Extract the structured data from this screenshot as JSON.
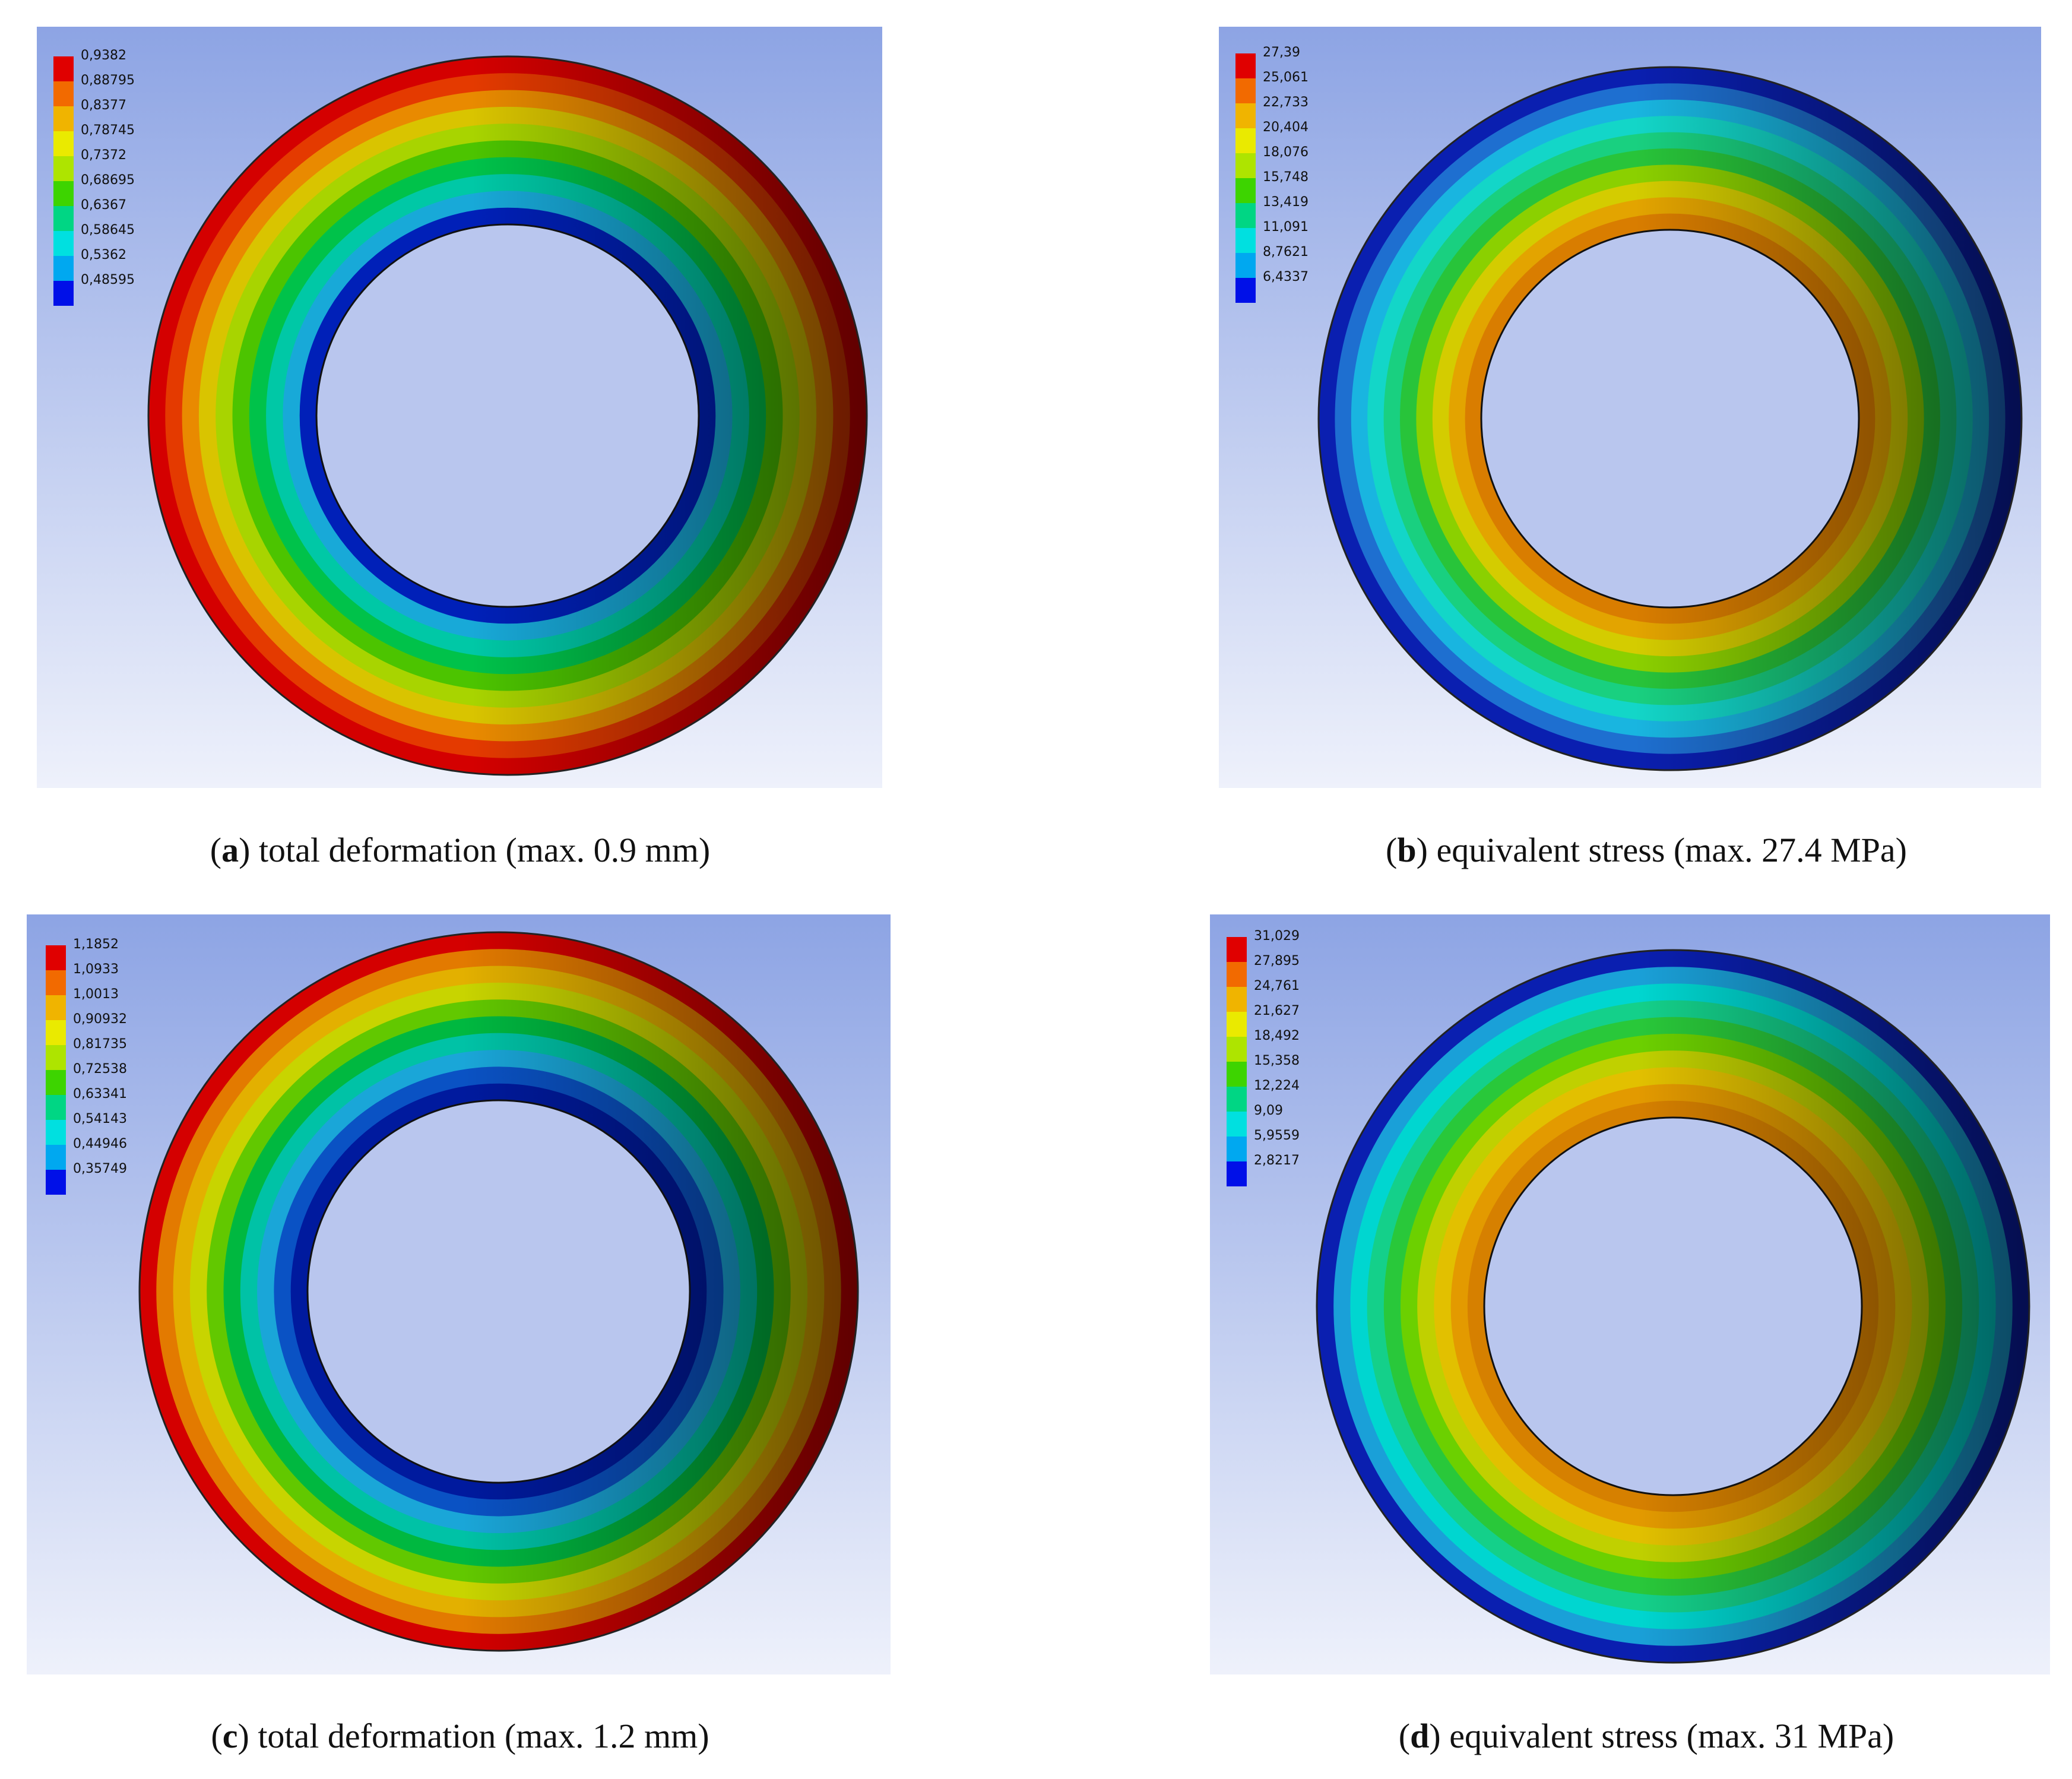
{
  "panels": [
    {
      "id": "a",
      "letter": "a",
      "caption_text": "total deformation (max. 0.9 mm)",
      "legend_values": [
        "0,9382",
        "0,88795",
        "0,8377",
        "0,78745",
        "0,7372",
        "0,68695",
        "0,6367",
        "0,58645",
        "0,5362",
        "0,48595"
      ],
      "ring_colors_outer_to_inner": [
        "#d40000",
        "#e43a00",
        "#e98a00",
        "#d9c400",
        "#a8d400",
        "#4cc400",
        "#00c24a",
        "#00c8a6",
        "#18a9d8",
        "#0020b8"
      ]
    },
    {
      "id": "b",
      "letter": "b",
      "caption_text": "equivalent stress (max. 27.4 MPa)",
      "legend_values": [
        "27,39",
        "25,061",
        "22,733",
        "20,404",
        "18,076",
        "15,748",
        "13,419",
        "11,091",
        "8,7621",
        "6,4337"
      ],
      "ring_colors_outer_to_inner": [
        "#0a1fb0",
        "#1e6fd0",
        "#19b5e0",
        "#13d6c8",
        "#19d080",
        "#28c43a",
        "#8bd000",
        "#d4cc00",
        "#e3a400",
        "#d97d00"
      ]
    },
    {
      "id": "c",
      "letter": "c",
      "caption_text": "total deformation (max. 1.2 mm)",
      "legend_values": [
        "1,1852",
        "1,0933",
        "1,0013",
        "0,90932",
        "0,81735",
        "0,72538",
        "0,63341",
        "0,54143",
        "0,44946",
        "0,35749"
      ],
      "ring_colors_outer_to_inner": [
        "#d40000",
        "#e37a00",
        "#e3b000",
        "#c8d400",
        "#62c800",
        "#00b840",
        "#00c2a6",
        "#1aa6d8",
        "#0a52c4",
        "#001a9e"
      ]
    },
    {
      "id": "d",
      "letter": "d",
      "caption_text": "equivalent stress (max. 31 MPa)",
      "legend_values": [
        "31,029",
        "27,895",
        "24,761",
        "21,627",
        "18,492",
        "15,358",
        "12,224",
        "9,09",
        "5,9559",
        "2,8217"
      ],
      "ring_colors_outer_to_inner": [
        "#0a1fb0",
        "#1aa0d8",
        "#00d6d0",
        "#14d08a",
        "#29c83a",
        "#6cd000",
        "#c0d000",
        "#e2c000",
        "#e39a00",
        "#d68000"
      ]
    }
  ],
  "legend_colors": [
    "#e00000",
    "#f26a00",
    "#f0b400",
    "#eaea00",
    "#aee400",
    "#3dd400",
    "#00d684",
    "#00e0e0",
    "#00a8f0",
    "#0010e8"
  ]
}
